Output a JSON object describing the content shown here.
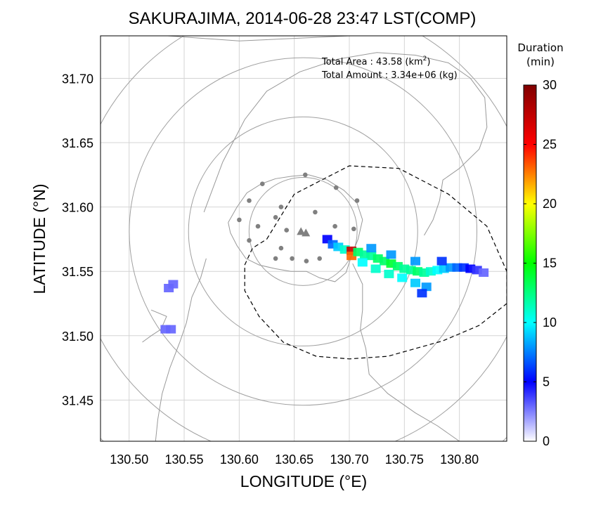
{
  "chart_data": {
    "type": "heatmap",
    "title": "SAKURAJIMA, 2014-06-28 23:47 LST(COMP)",
    "xlabel": "LONGITUDE (°E)",
    "ylabel": "LATITUDE (°N)",
    "xlim": [
      130.474,
      130.843
    ],
    "ylim": [
      31.418,
      31.733
    ],
    "x_ticks": [
      "130.50",
      "130.55",
      "130.60",
      "130.65",
      "130.70",
      "130.75",
      "130.80"
    ],
    "y_ticks": [
      "31.45",
      "31.50",
      "31.55",
      "31.60",
      "31.65",
      "31.70"
    ],
    "grid": true,
    "annotations": {
      "area_label": "Total Area   : 43.58 (km",
      "area_sup": "2",
      "area_close": ")",
      "amount_label": "Total Amount : 3.34e+06 (kg)"
    },
    "colorbar": {
      "title_line1": "Duration",
      "title_line2": "(min)",
      "min": 0,
      "max": 30,
      "ticks": [
        "0",
        "5",
        "10",
        "15",
        "20",
        "25",
        "30"
      ],
      "colors": [
        "#ffffff",
        "#0000ff",
        "#00ffff",
        "#00ff00",
        "#ffff00",
        "#ff0000",
        "#800000"
      ]
    },
    "volcano": {
      "lon": 130.658,
      "lat": 31.581
    },
    "range_rings_center": {
      "lon": 130.658,
      "lat": 31.581
    },
    "stations": [
      [
        130.621,
        31.618
      ],
      [
        130.66,
        31.625
      ],
      [
        130.688,
        31.615
      ],
      [
        130.609,
        31.605
      ],
      [
        130.638,
        31.6
      ],
      [
        130.669,
        31.596
      ],
      [
        130.707,
        31.605
      ],
      [
        130.6,
        31.59
      ],
      [
        130.633,
        31.592
      ],
      [
        130.617,
        31.585
      ],
      [
        130.643,
        31.582
      ],
      [
        130.687,
        31.585
      ],
      [
        130.704,
        31.583
      ],
      [
        130.609,
        31.574
      ],
      [
        130.638,
        31.568
      ],
      [
        130.633,
        31.56
      ],
      [
        130.648,
        31.56
      ],
      [
        130.661,
        31.558
      ],
      [
        130.673,
        31.56
      ]
    ],
    "ash_cells": [
      [
        130.68,
        31.575,
        5
      ],
      [
        130.685,
        31.571,
        7
      ],
      [
        130.69,
        31.569,
        9
      ],
      [
        130.696,
        31.567,
        11
      ],
      [
        130.702,
        31.566,
        27
      ],
      [
        130.702,
        31.562,
        23
      ],
      [
        130.708,
        31.565,
        13
      ],
      [
        130.714,
        31.563,
        12
      ],
      [
        130.72,
        31.562,
        12
      ],
      [
        130.726,
        31.56,
        13
      ],
      [
        130.732,
        31.558,
        13
      ],
      [
        130.738,
        31.556,
        14
      ],
      [
        130.744,
        31.554,
        13
      ],
      [
        130.75,
        31.552,
        12
      ],
      [
        130.756,
        31.551,
        12
      ],
      [
        130.762,
        31.55,
        13
      ],
      [
        130.768,
        31.549,
        12
      ],
      [
        130.774,
        31.55,
        11
      ],
      [
        130.78,
        31.551,
        10
      ],
      [
        130.786,
        31.552,
        9
      ],
      [
        130.792,
        31.553,
        8
      ],
      [
        130.798,
        31.553,
        7
      ],
      [
        130.804,
        31.553,
        6
      ],
      [
        130.81,
        31.552,
        5
      ],
      [
        130.816,
        31.551,
        4
      ],
      [
        130.822,
        31.549,
        3
      ],
      [
        130.712,
        31.557,
        10
      ],
      [
        130.724,
        31.552,
        11
      ],
      [
        130.736,
        31.548,
        11
      ],
      [
        130.748,
        31.545,
        10
      ],
      [
        130.76,
        31.541,
        9
      ],
      [
        130.77,
        31.538,
        8
      ],
      [
        130.766,
        31.533,
        6
      ],
      [
        130.72,
        31.568,
        8
      ],
      [
        130.738,
        31.563,
        8
      ],
      [
        130.76,
        31.558,
        8
      ],
      [
        130.784,
        31.558,
        6
      ],
      [
        130.54,
        31.54,
        3
      ],
      [
        130.536,
        31.537,
        3
      ],
      [
        130.533,
        31.505,
        3
      ],
      [
        130.538,
        31.505,
        3
      ]
    ]
  }
}
